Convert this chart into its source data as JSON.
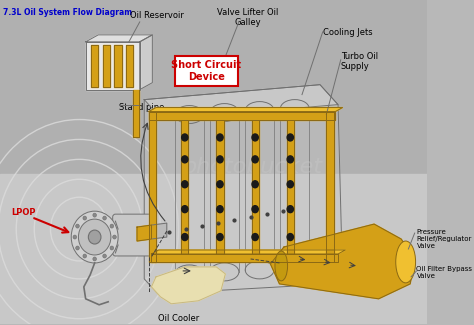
{
  "title": "7.3L Oil System Flow Diagram",
  "title_color": "#0000CC",
  "title_fontsize": 5.5,
  "bg_color_top": "#B8B8B8",
  "bg_color_bottom": "#D0D0D0",
  "labels": {
    "oil_reservoir": "Oil Reservoir",
    "short_circuit": "Short Circuit\nDevice",
    "valve_lifter": "Valve Lifter Oil\nGalley",
    "cooling_jets": "Cooling Jets",
    "turbo_oil": "Turbo Oil\nSupply",
    "stand_pipe": "Stand pipe",
    "lpop": "LPOP",
    "pressure_relief": "Pressure\nRelief/Regulator\nValve",
    "oil_filter_bypass": "Oil Filter Bypass\nValve",
    "oil_cooler": "Oil Cooler"
  },
  "gold": "#D4A017",
  "gold_dark": "#8B6914",
  "gold_light": "#F0C030",
  "gold_mid": "#C49A10",
  "cream": "#E8DFB0",
  "cream_dark": "#C8B880",
  "engine_line": "#707070",
  "engine_fill": "#C8C8C8",
  "engine_fill2": "#DCDCDC",
  "arrow_dark": "#404040",
  "red": "#CC0000",
  "white": "#FFFFFF",
  "label_fs": 6.0,
  "label_fs_sm": 5.5
}
